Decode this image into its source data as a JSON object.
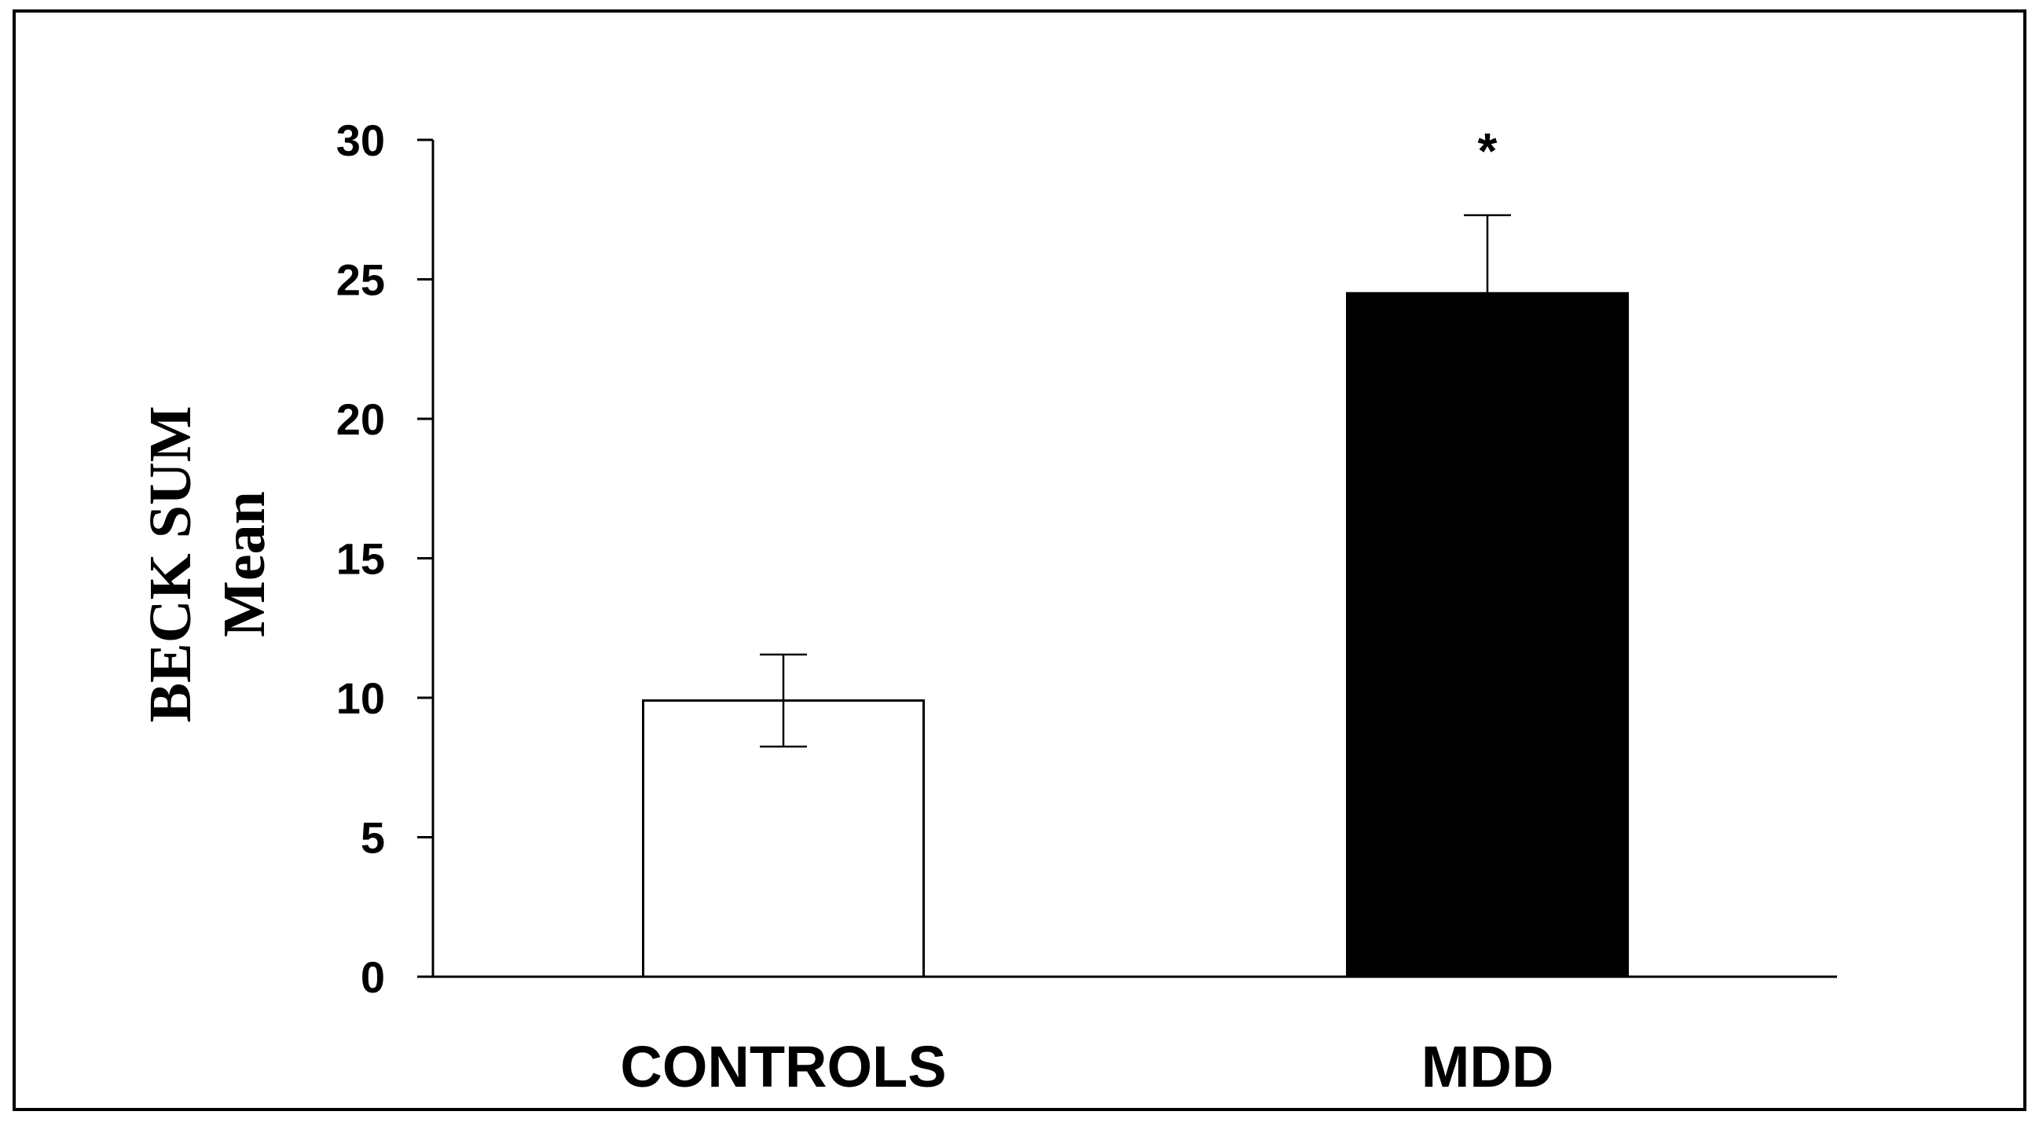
{
  "chart_data": {
    "type": "bar",
    "title": "",
    "xlabel": "",
    "ylabel_lines": [
      "BECK SUM",
      "Mean"
    ],
    "categories": [
      "CONTROLS",
      "MDD"
    ],
    "values": [
      9.9,
      24.5
    ],
    "errors": [
      1.65,
      2.8
    ],
    "bar_colors": [
      "#ffffff",
      "#000000"
    ],
    "bar_stroke": "#000000",
    "significance": [
      "",
      "*"
    ],
    "ylim": [
      0,
      30
    ],
    "yticks": [
      0,
      5,
      10,
      15,
      20,
      25,
      30
    ],
    "grid": false,
    "legend": "none"
  }
}
